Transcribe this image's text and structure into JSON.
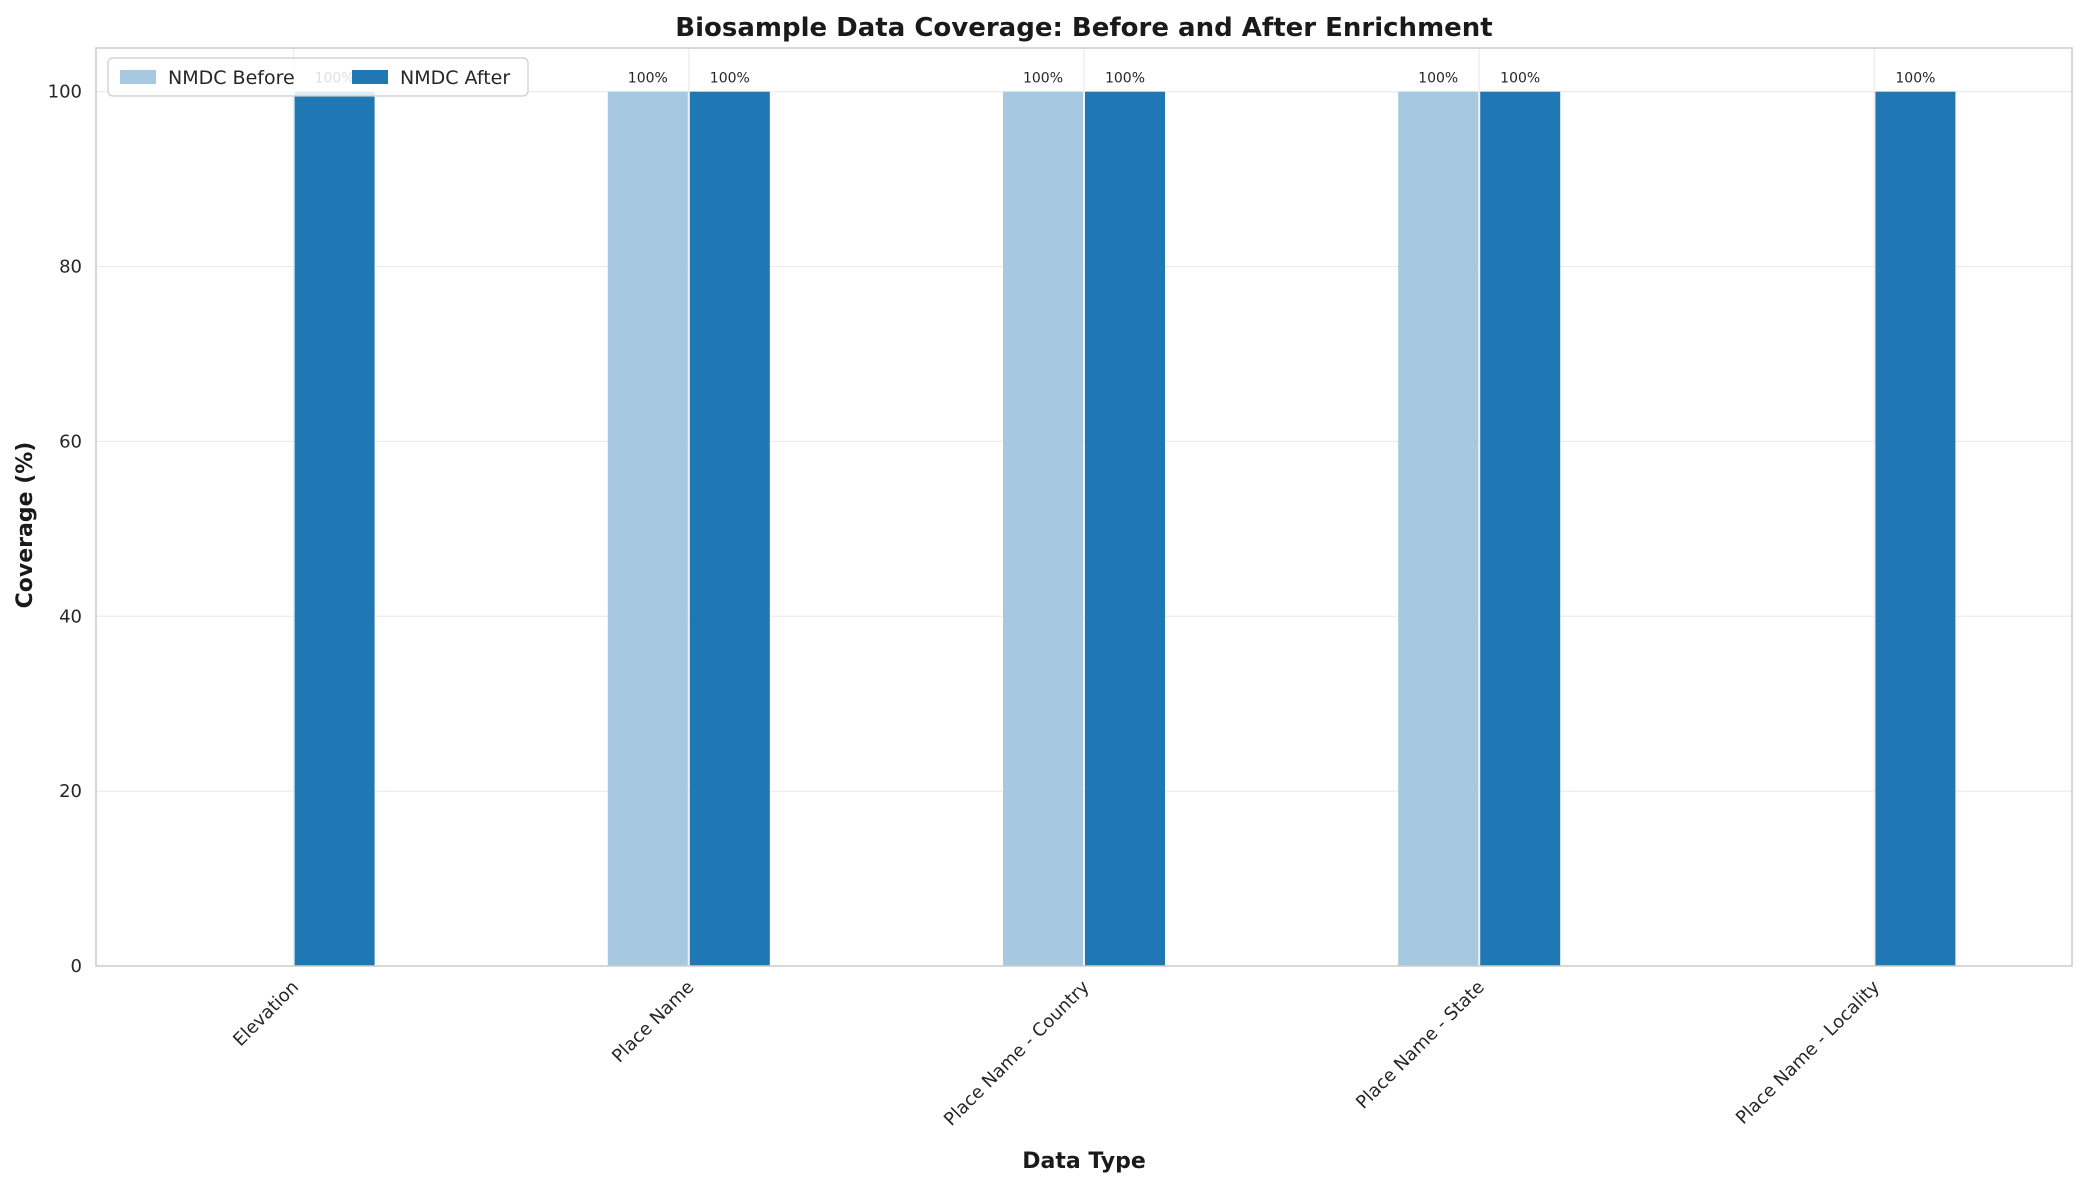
{
  "chart_data": {
    "type": "bar",
    "title": "Biosample Data Coverage: Before and After Enrichment",
    "xlabel": "Data Type",
    "ylabel": "Coverage (%)",
    "categories": [
      "Elevation",
      "Place Name",
      "Place Name - Country",
      "Place Name - State",
      "Place Name - Locality"
    ],
    "series": [
      {
        "name": "NMDC Before",
        "values": [
          0,
          100,
          100,
          100,
          0
        ],
        "color": "#a6c8e0"
      },
      {
        "name": "NMDC After",
        "values": [
          100,
          100,
          100,
          100,
          100
        ],
        "color": "#1f78b4"
      }
    ],
    "ylim": [
      0,
      105
    ],
    "yticks": [
      0,
      20,
      40,
      60,
      80,
      100
    ],
    "grid": true,
    "legend": "top-left",
    "value_label_suffix": "%"
  }
}
